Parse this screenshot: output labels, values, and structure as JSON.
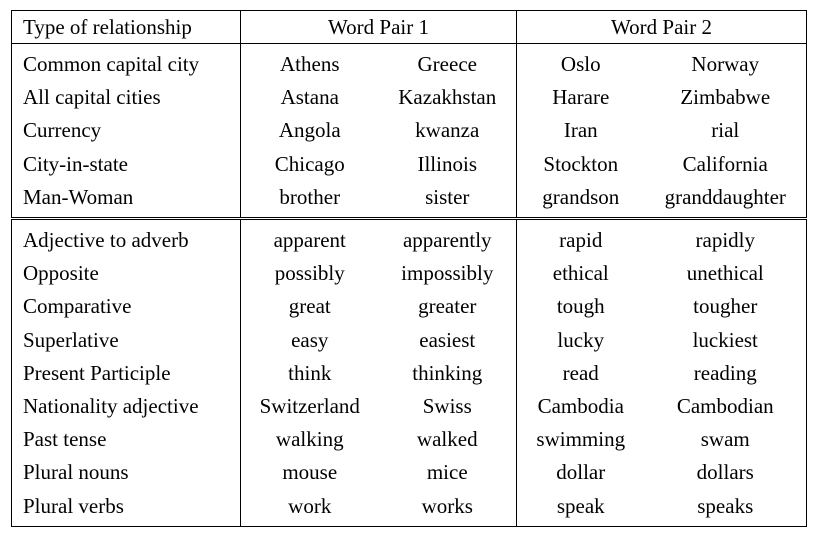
{
  "table": {
    "headers": {
      "type": "Type of relationship",
      "pair1": "Word Pair 1",
      "pair2": "Word Pair 2"
    },
    "semantic_rows": [
      [
        "Common capital city",
        "Athens",
        "Greece",
        "Oslo",
        "Norway"
      ],
      [
        "All capital cities",
        "Astana",
        "Kazakhstan",
        "Harare",
        "Zimbabwe"
      ],
      [
        "Currency",
        "Angola",
        "kwanza",
        "Iran",
        "rial"
      ],
      [
        "City-in-state",
        "Chicago",
        "Illinois",
        "Stockton",
        "California"
      ],
      [
        "Man-Woman",
        "brother",
        "sister",
        "grandson",
        "granddaughter"
      ]
    ],
    "syntactic_rows": [
      [
        "Adjective to adverb",
        "apparent",
        "apparently",
        "rapid",
        "rapidly"
      ],
      [
        "Opposite",
        "possibly",
        "impossibly",
        "ethical",
        "unethical"
      ],
      [
        "Comparative",
        "great",
        "greater",
        "tough",
        "tougher"
      ],
      [
        "Superlative",
        "easy",
        "easiest",
        "lucky",
        "luckiest"
      ],
      [
        "Present Participle",
        "think",
        "thinking",
        "read",
        "reading"
      ],
      [
        "Nationality adjective",
        "Switzerland",
        "Swiss",
        "Cambodia",
        "Cambodian"
      ],
      [
        "Past tense",
        "walking",
        "walked",
        "swimming",
        "swam"
      ],
      [
        "Plural nouns",
        "mouse",
        "mice",
        "dollar",
        "dollars"
      ],
      [
        "Plural verbs",
        "work",
        "works",
        "speak",
        "speaks"
      ]
    ]
  }
}
